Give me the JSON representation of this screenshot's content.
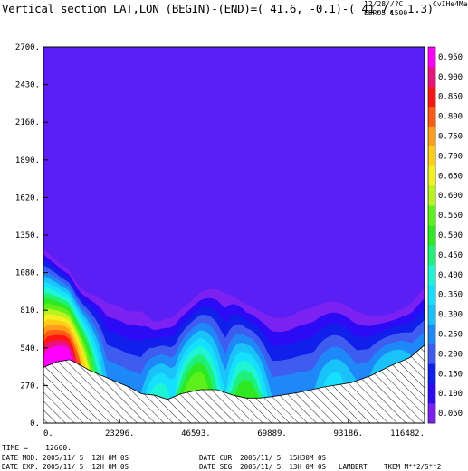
{
  "header": {
    "title": "Vertical section LAT,LON (BEGIN)-(END)=( 41.6, -0.1)-( 41.7,  1.3)",
    "date_code": "12/28//?C",
    "tag": "CvIHe4Mae",
    "run": "EBRO5 1500"
  },
  "footer": {
    "time": "TIME =    12600.",
    "date_mod": "DATE MOD. 2005/11/ 5  12H 0M 0S",
    "date_cur": "DATE CUR. 2005/11/ 5  15H30M 0S",
    "date_exp": "DATE EXP. 2005/11/ 5  12H 0M 0S",
    "date_seg": "DATE SEG. 2005/11/ 5  13H 0M 0S",
    "projection": "LAMBERT",
    "variable_units": "TKEM M**2/S**2"
  },
  "chart_data": {
    "type": "heatmap",
    "title": "Vertical section LAT,LON (BEGIN)-(END)=( 41.6, -0.1)-( 41.7,  1.3)",
    "xlabel": "",
    "ylabel": "",
    "xlim": [
      0,
      116482
    ],
    "ylim": [
      0,
      2700
    ],
    "x_ticks": [
      "0.",
      "23296.",
      "46593.",
      "69889.",
      "93186.",
      "116482."
    ],
    "y_ticks": [
      "0.",
      "270.",
      "540.",
      "810.",
      "1080.",
      "1350.",
      "1620.",
      "1890.",
      "2160.",
      "2430.",
      "2700."
    ],
    "x_tick_values": [
      0,
      23296,
      46593,
      69889,
      93186,
      116482
    ],
    "y_tick_values": [
      0,
      270,
      540,
      810,
      1080,
      1350,
      1620,
      1890,
      2160,
      2430,
      2700
    ],
    "colorbar": {
      "labels": [
        "0.050",
        "0.100",
        "0.150",
        "0.200",
        "0.250",
        "0.300",
        "0.350",
        "0.400",
        "0.450",
        "0.500",
        "0.550",
        "0.600",
        "0.650",
        "0.700",
        "0.750",
        "0.800",
        "0.850",
        "0.900",
        "0.950"
      ],
      "levels": [
        0.05,
        0.1,
        0.15,
        0.2,
        0.25,
        0.3,
        0.35,
        0.4,
        0.45,
        0.5,
        0.55,
        0.6,
        0.65,
        0.7,
        0.75,
        0.8,
        0.85,
        0.9,
        0.95
      ],
      "colors": [
        "#7b22f2",
        "#2c0af5",
        "#1020ea",
        "#3e5cf0",
        "#1f88f8",
        "#19c2f8",
        "#16e0ff",
        "#1ff5d5",
        "#1ef07a",
        "#2ee822",
        "#5ef01a",
        "#baf21f",
        "#f2f01e",
        "#ffcc18",
        "#ff9d1a",
        "#ff5a14",
        "#ff1414",
        "#e8137c",
        "#ff00ff"
      ]
    },
    "background_color": "#5b1ff6",
    "terrain_x": [
      0,
      4000,
      8000,
      11000,
      14000,
      20000,
      26000,
      30000,
      34000,
      38000,
      42000,
      48000,
      53000,
      58000,
      62000,
      66000,
      70000,
      78000,
      86000,
      94000,
      100000,
      106000,
      112000,
      116482
    ],
    "terrain_height": [
      400,
      440,
      455,
      420,
      380,
      320,
      260,
      210,
      200,
      170,
      210,
      240,
      240,
      200,
      180,
      180,
      190,
      220,
      260,
      290,
      340,
      410,
      470,
      560
    ],
    "tke_top_height": [
      1290,
      1280,
      1230,
      1080,
      1010,
      900,
      820,
      860,
      800,
      900,
      980,
      1010,
      970,
      910,
      850,
      880,
      940,
      970,
      880,
      850,
      870,
      900,
      940,
      1020
    ]
  }
}
